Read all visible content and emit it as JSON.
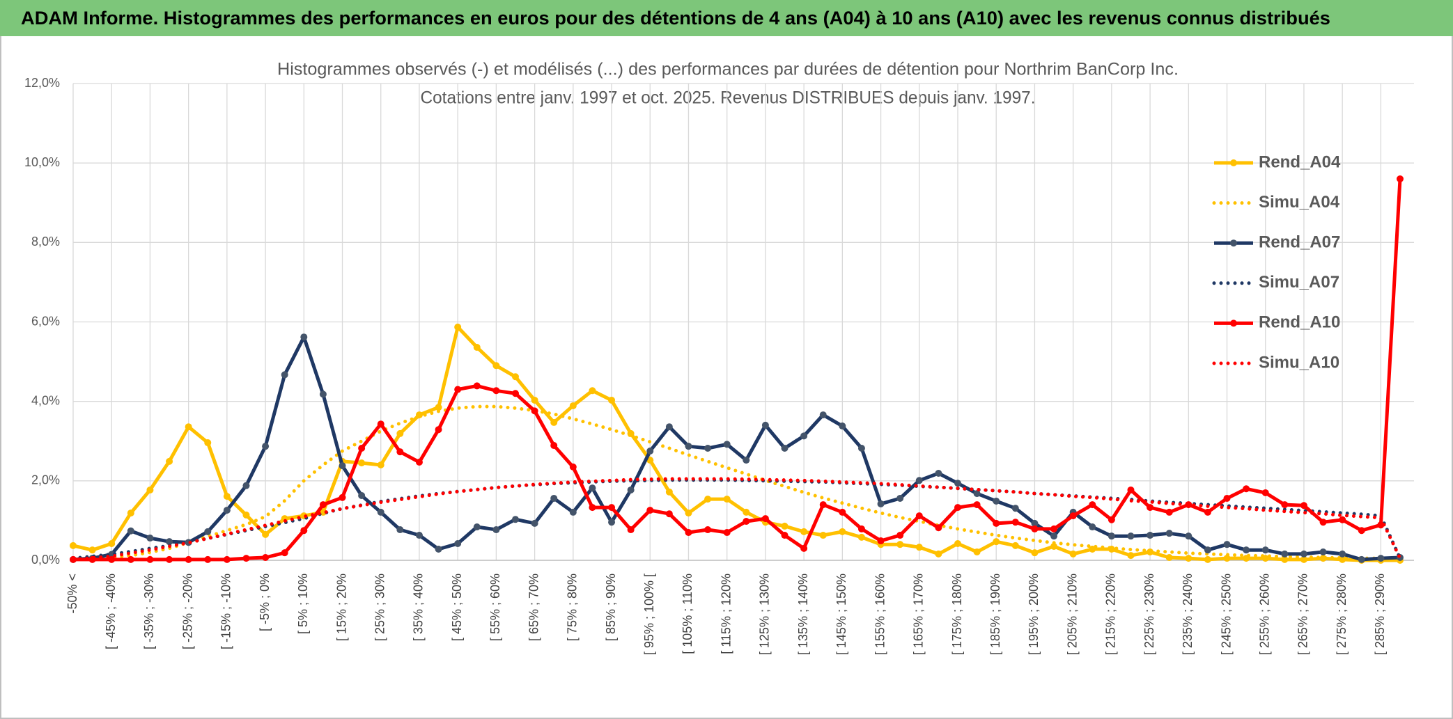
{
  "chart_data": {
    "type": "line",
    "banner": "ADAM Informe. Histogrammes des performances en euros pour des détentions de 4 ans (A04) à 10 ans (A10) avec les revenus connus distribués",
    "title": "Histogrammes observés (-) et modélisés (...) des performances par durées de détention pour Northrim BanCorp Inc.",
    "subtitle": "Cotations entre janv. 1997 et oct. 2025. Revenus DISTRIBUES depuis janv. 1997.",
    "categories": [
      "-50% <",
      null,
      "[ -45% ; -40%",
      null,
      "[ -35% ; -30%",
      null,
      "[ -25% ; -20%",
      null,
      "[ -15% ; -10%",
      null,
      "[ -5% ; 0%",
      null,
      "[ 5% ; 10%",
      null,
      "[ 15% ; 20%",
      null,
      "[ 25% ; 30%",
      null,
      "[ 35% ; 40%",
      null,
      "[ 45% ; 50%",
      null,
      "[ 55% ; 60%",
      null,
      "[ 65% ; 70%",
      null,
      "[ 75% ; 80%",
      null,
      "[ 85% ; 90%",
      null,
      "[ 95% ; 100% [",
      null,
      "[ 105% ; 110%",
      null,
      "[ 115% ; 120%",
      null,
      "[ 125% ; 130%",
      null,
      "[ 135% ; 140%",
      null,
      "[ 145% ; 150%",
      null,
      "[ 155% ; 160%",
      null,
      "[ 165% ; 170%",
      null,
      "[ 175% ; 180%",
      null,
      "[ 185% ; 190%",
      null,
      "[ 195% ; 200%",
      null,
      "[ 205% ; 210%",
      null,
      "[ 215% ; 220%",
      null,
      "[ 225% ; 230%",
      null,
      "[ 235% ; 240%",
      null,
      "[ 245% ; 250%",
      null,
      "[ 255% ; 260%",
      null,
      "[ 265% ; 270%",
      null,
      "[ 275% ; 280%",
      null,
      "[ 285% ; 290%",
      null
    ],
    "ylim": [
      0,
      12
    ],
    "yticks": [
      {
        "value": 0,
        "label": "0,0%"
      },
      {
        "value": 2,
        "label": "2,0%"
      },
      {
        "value": 4,
        "label": "4,0%"
      },
      {
        "value": 6,
        "label": "6,0%"
      },
      {
        "value": 8,
        "label": "8,0%"
      },
      {
        "value": 10,
        "label": "10,0%"
      },
      {
        "value": 12,
        "label": "12,0%"
      }
    ],
    "grid": true,
    "legend": "upper right",
    "series": [
      {
        "name": "Rend_A04",
        "color": "#ffc000",
        "style": "solid",
        "values": [
          0.37,
          0.26,
          0.42,
          1.19,
          1.77,
          2.49,
          3.36,
          2.96,
          1.61,
          1.14,
          0.65,
          1.05,
          1.12,
          1.21,
          2.49,
          2.45,
          2.4,
          3.19,
          3.66,
          3.85,
          5.87,
          5.36,
          4.9,
          4.62,
          4.03,
          3.47,
          3.89,
          4.27,
          4.03,
          3.19,
          2.52,
          1.72,
          1.19,
          1.54,
          1.54,
          1.21,
          0.96,
          0.86,
          0.72,
          0.63,
          0.72,
          0.58,
          0.4,
          0.4,
          0.33,
          0.16,
          0.42,
          0.21,
          0.47,
          0.37,
          0.19,
          0.35,
          0.16,
          0.28,
          0.28,
          0.12,
          0.21,
          0.07,
          0.05,
          0.02,
          0.05,
          0.05,
          0.05,
          0.02,
          0.02,
          0.05,
          0.02,
          0,
          0,
          0
        ]
      },
      {
        "name": "Simu_A04",
        "color": "#ffc000",
        "style": "dotted",
        "values": [
          0.02,
          0.04,
          0.07,
          0.12,
          0.2,
          0.3,
          0.45,
          0.6,
          0.75,
          0.9,
          1.1,
          1.5,
          2.0,
          2.4,
          2.75,
          3.0,
          3.25,
          3.45,
          3.62,
          3.75,
          3.83,
          3.87,
          3.87,
          3.83,
          3.77,
          3.68,
          3.56,
          3.43,
          3.29,
          3.14,
          2.98,
          2.82,
          2.65,
          2.49,
          2.33,
          2.17,
          2.01,
          1.86,
          1.71,
          1.57,
          1.44,
          1.31,
          1.19,
          1.08,
          0.98,
          0.88,
          0.79,
          0.71,
          0.63,
          0.56,
          0.5,
          0.44,
          0.39,
          0.35,
          0.31,
          0.27,
          0.24,
          0.21,
          0.18,
          0.16,
          0.14,
          0.12,
          0.11,
          0.09,
          0.08,
          0.07,
          0.06,
          0.05,
          0.05,
          0
        ]
      },
      {
        "name": "Rend_A07",
        "color": "#1f3864",
        "style": "solid",
        "values": [
          0.02,
          0.05,
          0.15,
          0.74,
          0.56,
          0.47,
          0.45,
          0.72,
          1.26,
          1.88,
          2.87,
          4.67,
          5.62,
          4.18,
          2.38,
          1.63,
          1.21,
          0.77,
          0.63,
          0.28,
          0.42,
          0.84,
          0.77,
          1.03,
          0.93,
          1.56,
          1.21,
          1.82,
          0.96,
          1.77,
          2.75,
          3.36,
          2.87,
          2.82,
          2.92,
          2.52,
          3.4,
          2.82,
          3.13,
          3.66,
          3.38,
          2.82,
          1.42,
          1.56,
          2.01,
          2.19,
          1.94,
          1.68,
          1.49,
          1.31,
          0.93,
          0.61,
          1.21,
          0.84,
          0.61,
          0.61,
          0.63,
          0.68,
          0.61,
          0.26,
          0.4,
          0.26,
          0.26,
          0.16,
          0.16,
          0.21,
          0.16,
          0.02,
          0.05,
          0.07
        ]
      },
      {
        "name": "Simu_A07",
        "color": "#1f3864",
        "style": "dotted",
        "values": [
          0.05,
          0.1,
          0.15,
          0.22,
          0.3,
          0.37,
          0.45,
          0.55,
          0.65,
          0.75,
          0.85,
          0.95,
          1.05,
          1.18,
          1.3,
          1.39,
          1.48,
          1.55,
          1.62,
          1.68,
          1.73,
          1.78,
          1.83,
          1.87,
          1.9,
          1.93,
          1.95,
          1.97,
          1.99,
          2.0,
          2.01,
          2.02,
          2.02,
          2.02,
          2.02,
          2.01,
          2.0,
          1.99,
          1.98,
          1.97,
          1.95,
          1.93,
          1.91,
          1.89,
          1.86,
          1.84,
          1.81,
          1.78,
          1.75,
          1.72,
          1.68,
          1.65,
          1.62,
          1.59,
          1.56,
          1.53,
          1.49,
          1.46,
          1.43,
          1.4,
          1.37,
          1.34,
          1.31,
          1.28,
          1.25,
          1.22,
          1.19,
          1.16,
          1.12,
          0.05
        ]
      },
      {
        "name": "Rend_A10",
        "color": "#ff0000",
        "style": "solid",
        "values": [
          0.02,
          0.02,
          0.02,
          0.02,
          0.02,
          0.02,
          0.02,
          0.02,
          0.02,
          0.05,
          0.07,
          0.19,
          0.75,
          1.4,
          1.58,
          2.82,
          3.43,
          2.73,
          2.47,
          3.29,
          4.3,
          4.39,
          4.27,
          4.2,
          3.76,
          2.89,
          2.35,
          1.33,
          1.33,
          0.77,
          1.26,
          1.17,
          0.7,
          0.77,
          0.7,
          0.98,
          1.05,
          0.63,
          0.3,
          1.4,
          1.21,
          0.79,
          0.49,
          0.63,
          1.12,
          0.82,
          1.33,
          1.4,
          0.93,
          0.96,
          0.79,
          0.79,
          1.12,
          1.4,
          1.02,
          1.77,
          1.33,
          1.21,
          1.4,
          1.21,
          1.56,
          1.8,
          1.7,
          1.4,
          1.38,
          0.96,
          1.02,
          0.75,
          0.89,
          9.6
        ]
      },
      {
        "name": "Simu_A10",
        "color": "#ff0000",
        "style": "dotted",
        "values": [
          0.02,
          0.06,
          0.1,
          0.18,
          0.26,
          0.35,
          0.44,
          0.55,
          0.66,
          0.77,
          0.88,
          0.99,
          1.1,
          1.2,
          1.3,
          1.38,
          1.46,
          1.53,
          1.6,
          1.67,
          1.73,
          1.78,
          1.83,
          1.87,
          1.91,
          1.94,
          1.97,
          1.99,
          2.01,
          2.03,
          2.04,
          2.05,
          2.05,
          2.05,
          2.05,
          2.04,
          2.03,
          2.02,
          2.01,
          1.99,
          1.97,
          1.95,
          1.93,
          1.9,
          1.87,
          1.84,
          1.81,
          1.78,
          1.75,
          1.72,
          1.68,
          1.65,
          1.61,
          1.58,
          1.54,
          1.5,
          1.47,
          1.43,
          1.4,
          1.36,
          1.33,
          1.3,
          1.26,
          1.23,
          1.2,
          1.17,
          1.13,
          1.1,
          1.07,
          0.05
        ]
      }
    ]
  }
}
